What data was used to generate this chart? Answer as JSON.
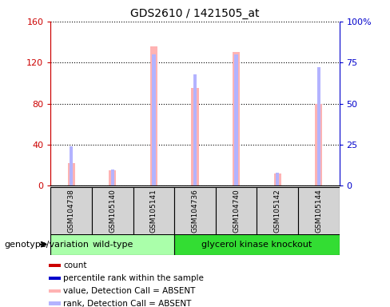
{
  "title": "GDS2610 / 1421505_at",
  "samples": [
    "GSM104738",
    "GSM105140",
    "GSM105141",
    "GSM104736",
    "GSM104740",
    "GSM105142",
    "GSM105144"
  ],
  "groups": [
    "wild-type",
    "wild-type",
    "wild-type",
    "glycerol kinase knockout",
    "glycerol kinase knockout",
    "glycerol kinase knockout",
    "glycerol kinase knockout"
  ],
  "pink_values": [
    22,
    15,
    136,
    95,
    130,
    12,
    80
  ],
  "blue_rank_values": [
    24,
    10,
    80,
    68,
    80,
    8,
    72
  ],
  "ylim_left": [
    0,
    160
  ],
  "ylim_right": [
    0,
    100
  ],
  "yticks_left": [
    0,
    40,
    80,
    120,
    160
  ],
  "yticks_right": [
    0,
    25,
    50,
    75,
    100
  ],
  "ytick_labels_right": [
    "0",
    "25",
    "50",
    "75",
    "100%"
  ],
  "group_colors": {
    "wild-type": "#aaffaa",
    "glycerol kinase knockout": "#33dd33"
  },
  "bar_color_pink": "#ffb3b3",
  "bar_color_blue": "#b3b3ff",
  "left_axis_color": "#cc0000",
  "right_axis_color": "#0000cc",
  "legend_items": [
    {
      "label": "count",
      "color": "#cc0000"
    },
    {
      "label": "percentile rank within the sample",
      "color": "#0000cc"
    },
    {
      "label": "value, Detection Call = ABSENT",
      "color": "#ffb3b3"
    },
    {
      "label": "rank, Detection Call = ABSENT",
      "color": "#b3b3ff"
    }
  ],
  "group_label": "genotype/variation"
}
